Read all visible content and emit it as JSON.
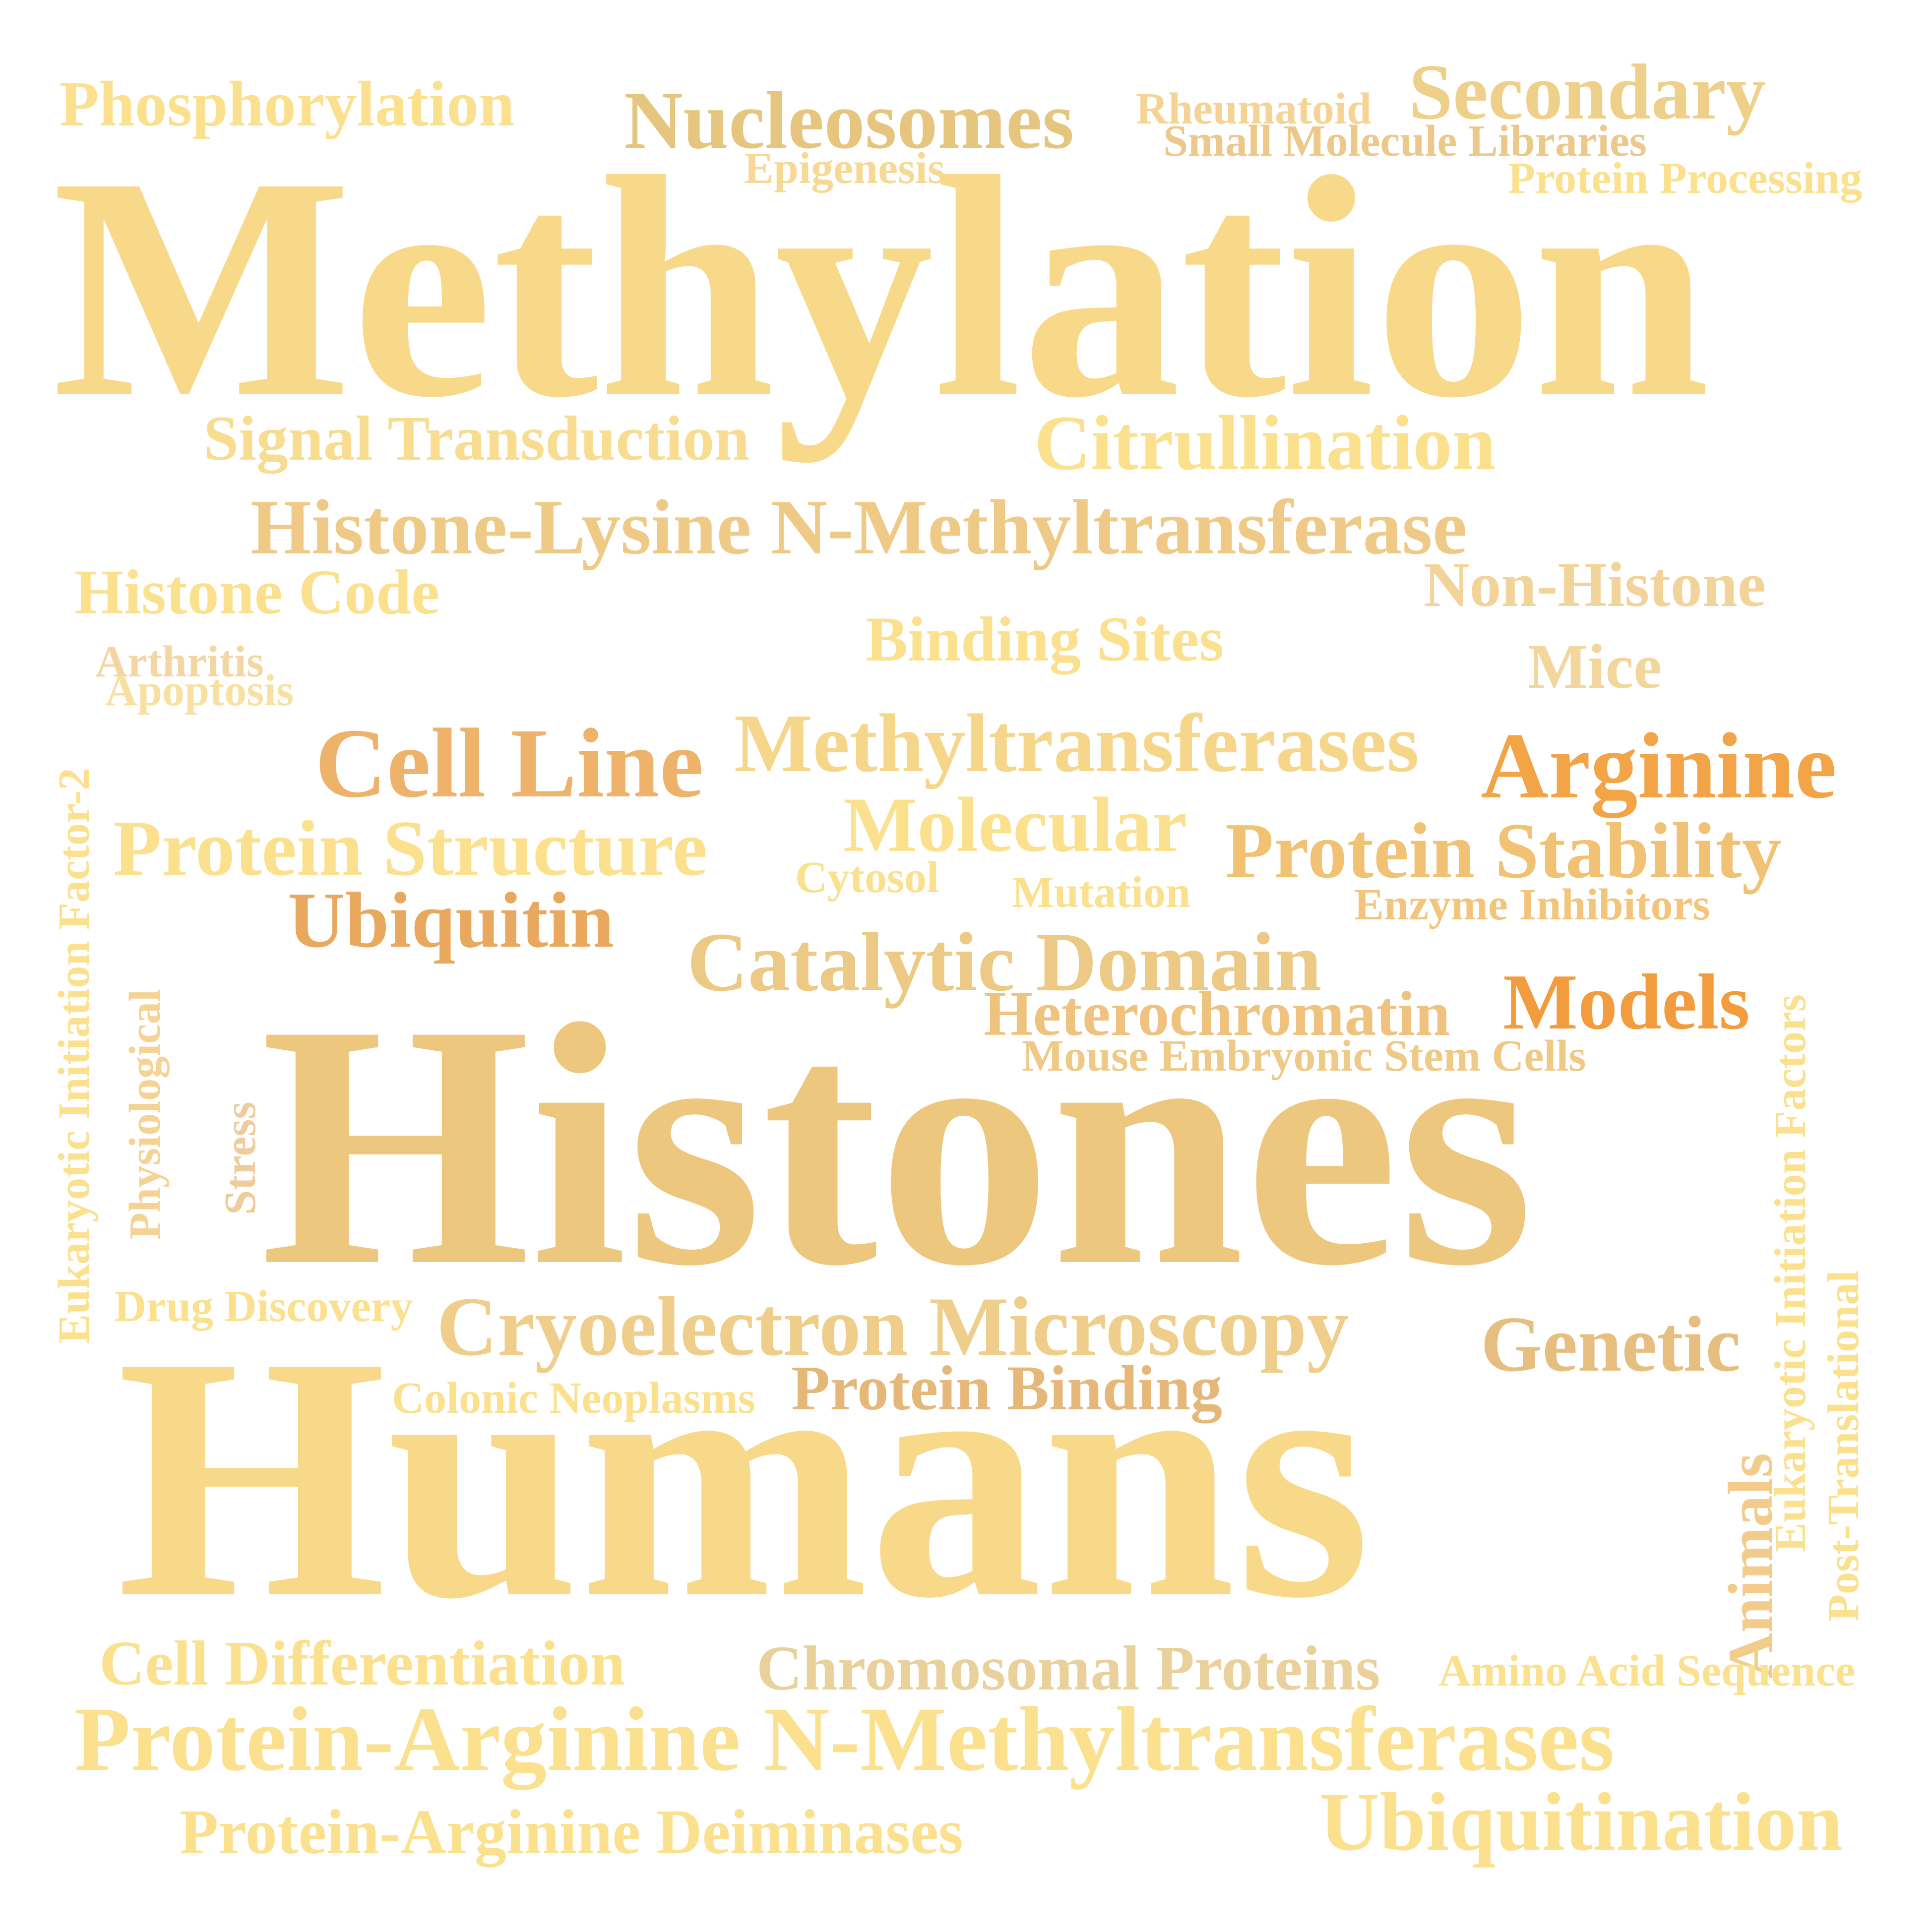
{
  "words": {
    "methylation": "Methylation",
    "histones": "Histones",
    "humans": "Humans",
    "phosphorylation": "Phosphorylation",
    "nucleosomes": "Nucleosomes",
    "rheumatoid": "Rheumatoid",
    "secondary": "Secondary",
    "small_molecule_libraries": "Small Molecule Libraries",
    "epigenesis": "Epigenesis",
    "protein_processing": "Protein Processing",
    "signal_transduction": "Signal Transduction",
    "citrullination": "Citrullination",
    "histone_lysine": "Histone-Lysine N-Methyltransferase",
    "histone_code": "Histone Code",
    "non_histone": "Non-Histone",
    "binding_sites": "Binding Sites",
    "arthritis": "Arthritis",
    "apoptosis": "Apoptosis",
    "mice": "Mice",
    "cell_line": "Cell Line",
    "methyltransferases": "Methyltransferases",
    "arginine": "Arginine",
    "molecular": "Molecular",
    "protein_structure": "Protein Structure",
    "protein_stability": "Protein Stability",
    "cytosol": "Cytosol",
    "mutation": "Mutation",
    "enzyme_inhibitors": "Enzyme Inhibitors",
    "ubiquitin": "Ubiquitin",
    "catalytic_domain": "Catalytic Domain",
    "heterochromatin": "Heterochromatin",
    "models": "Models",
    "mouse_embryonic": "Mouse Embryonic Stem Cells",
    "eukaryotic_if2": "Eukaryotic Initiation Factor-2",
    "physiological": "Physiological",
    "stress": "Stress",
    "eukaryotic_ifs": "Eukaryotic Initiation Factors",
    "drug_discovery": "Drug Discovery",
    "cryoelectron": "Cryoelectron Microscopy",
    "genetic": "Genetic",
    "colonic_neoplasms": "Colonic Neoplasms",
    "protein_binding": "Protein Binding",
    "post_translational": "Post-Translational",
    "animals": "Animals",
    "cell_differentiation": "Cell Differentiation",
    "chromosomal_proteins": "Chromosomal Proteins",
    "amino_acid_sequence": "Amino Acid Sequence",
    "protein_arginine_nmt": "Protein-Arginine N-Methyltransferases",
    "ubiquitination": "Ubiquitination",
    "protein_arginine_deiminases": "Protein-Arginine Deiminases"
  },
  "colors": {
    "light_yellow": "#fbe08e",
    "pale_gold": "#f8d98a",
    "sand": "#efcc85",
    "tan": "#e6be80",
    "orange_tan": "#eeb26a",
    "orange": "#f3a447",
    "bright_orange": "#f29c3e"
  }
}
